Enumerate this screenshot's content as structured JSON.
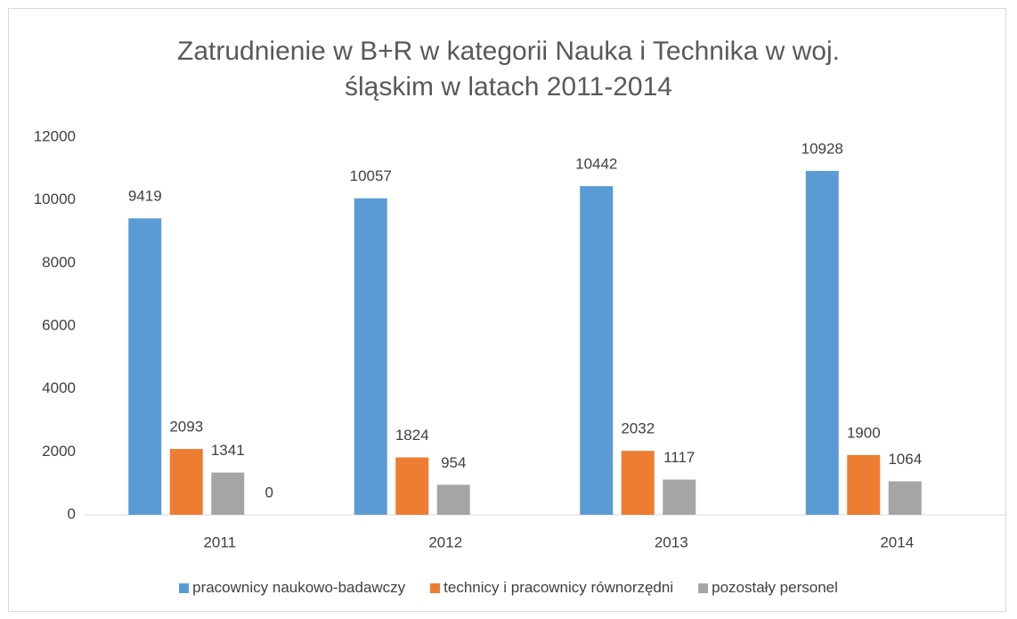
{
  "chart_data": {
    "type": "bar",
    "title": "Zatrudnienie w B+R w kategorii Nauka i Technika w woj. śląskim w latach 2011-2014",
    "categories": [
      "2011",
      "2012",
      "2013",
      "2014"
    ],
    "series": [
      {
        "name": "pracownicy naukowo-badawczy",
        "color": "#5b9bd5",
        "values": [
          9419,
          10057,
          10442,
          10928
        ]
      },
      {
        "name": "technicy i pracownicy równorzędni",
        "color": "#ed7d31",
        "values": [
          2093,
          1824,
          2032,
          1900
        ]
      },
      {
        "name": "pozostały personel",
        "color": "#a5a5a5",
        "values": [
          1341,
          954,
          1117,
          1064
        ]
      },
      {
        "name": null,
        "color": "#ffc000",
        "values": [
          0,
          null,
          null,
          null
        ]
      }
    ],
    "ylim": [
      0,
      12000
    ],
    "yticks": [
      0,
      2000,
      4000,
      6000,
      8000,
      10000,
      12000
    ],
    "grid": false,
    "legend": "bottom"
  }
}
